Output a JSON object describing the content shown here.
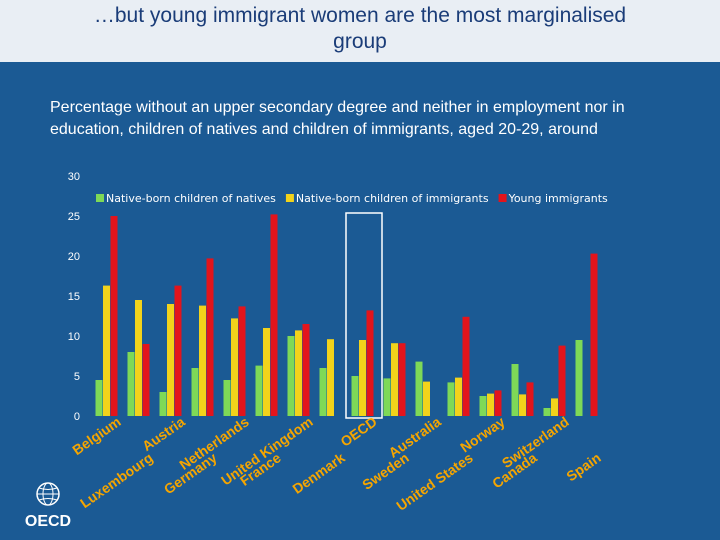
{
  "page": {
    "title_line1": "…but young immigrant women are the most marginalised",
    "title_line2": "group",
    "subtitle_line1": "Percentage without an upper secondary degree and neither in employment nor in",
    "subtitle_line2": "education, children of natives and children of immigrants, aged 20-29, around",
    "logo_text": "OECD"
  },
  "colors": {
    "background": "#1b5a94",
    "title_band": "#e9eef4",
    "title_text": "#1a3c78",
    "series": [
      "#7ed957",
      "#f2d31b",
      "#e3141c"
    ],
    "label_orange": "#f5a500",
    "highlight_box": "#ffffff"
  },
  "chart_data": {
    "type": "bar",
    "ylim": [
      0,
      30
    ],
    "yticks": [
      0,
      5,
      10,
      15,
      20,
      25,
      30
    ],
    "legend_position": "top",
    "highlight_category": "OECD",
    "categories": [
      "Belgium",
      "Luxembourg",
      "Austria",
      "Germany",
      "Netherlands",
      "France",
      "United Kingdom",
      "Denmark",
      "OECD",
      "Sweden",
      "Australia",
      "United States",
      "Norway",
      "Canada",
      "Switzerland",
      "Spain"
    ],
    "series": [
      {
        "name": "Native-born children of natives",
        "values": [
          4.5,
          8.0,
          3.0,
          6.0,
          4.5,
          6.3,
          10.0,
          6.0,
          5.0,
          4.7,
          6.8,
          4.2,
          2.5,
          6.5,
          1.0,
          9.5
        ]
      },
      {
        "name": "Native-born children of immigrants",
        "values": [
          16.3,
          14.5,
          14.0,
          13.8,
          12.2,
          11.0,
          10.7,
          9.6,
          9.5,
          9.1,
          4.3,
          4.8,
          2.8,
          2.7,
          2.2,
          null
        ]
      },
      {
        "name": "Young immigrants",
        "values": [
          25.0,
          9.0,
          16.3,
          19.7,
          13.7,
          25.2,
          11.5,
          null,
          13.2,
          9.1,
          null,
          12.4,
          3.2,
          4.2,
          8.8,
          20.3
        ]
      }
    ]
  }
}
